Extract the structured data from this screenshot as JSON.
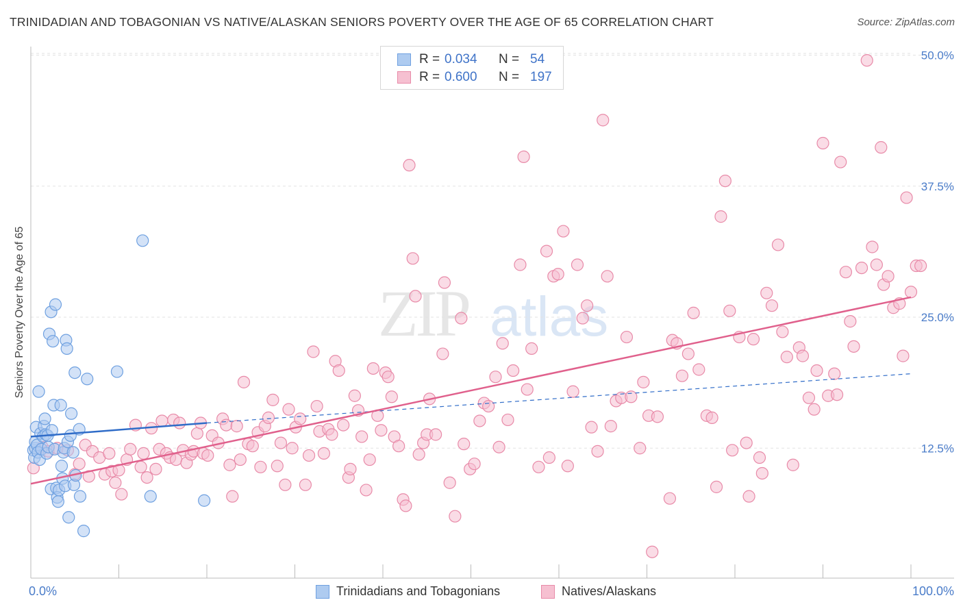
{
  "title": "TRINIDADIAN AND TOBAGONIAN VS NATIVE/ALASKAN SENIORS POVERTY OVER THE AGE OF 65 CORRELATION CHART",
  "source": "Source: ZipAtlas.com",
  "watermark": {
    "zip": "ZIP",
    "atlas": "atlas"
  },
  "colors": {
    "blue": "#6ea0e0",
    "blue_fill": "#aecbf0",
    "blue_line": "#2f6cc8",
    "pink": "#e88aa8",
    "pink_fill": "#f6c0d1",
    "pink_line": "#e0608c",
    "tick_text": "#4a7cc9",
    "grid": "#e2e2e2"
  },
  "legend": {
    "rows": [
      {
        "r_label": "R =",
        "r_value": "0.034",
        "n_label": "N =",
        "n_value": "54"
      },
      {
        "r_label": "R =",
        "r_value": "0.600",
        "n_label": "N =",
        "n_value": "197"
      }
    ]
  },
  "bottom_legend": [
    "Trinidadians and Tobagonians",
    "Natives/Alaskans"
  ],
  "chart_data": {
    "type": "scatter",
    "title": "TRINIDADIAN AND TOBAGONIAN VS NATIVE/ALASKAN SENIORS POVERTY OVER THE AGE OF 65 CORRELATION CHART",
    "xlabel": "",
    "ylabel": "Seniors Poverty Over the Age of 65",
    "xlim": [
      0,
      100
    ],
    "ylim": [
      0,
      52
    ],
    "x_tick_labels": [
      "0.0%",
      "100.0%"
    ],
    "y_ticks": [
      12.5,
      25.0,
      37.5,
      50.0
    ],
    "y_tick_labels": [
      "12.5%",
      "25.0%",
      "37.5%",
      "50.0%"
    ],
    "grid": "horizontal dashed",
    "legend_placement": "top-center",
    "series": [
      {
        "name": "Trinidadians and Tobagonians",
        "R": 0.034,
        "N": 54,
        "trend": {
          "x": [
            0,
            20
          ],
          "y": [
            13.6,
            14.9
          ]
        },
        "trend_extension": {
          "x": [
            20,
            100
          ],
          "y": [
            14.9,
            19.6
          ]
        },
        "points": [
          [
            0.3,
            12.3
          ],
          [
            0.4,
            11.6
          ],
          [
            0.5,
            12.5
          ],
          [
            0.5,
            13.1
          ],
          [
            0.6,
            14.5
          ],
          [
            0.7,
            12.8
          ],
          [
            0.8,
            12.1
          ],
          [
            0.9,
            17.9
          ],
          [
            1.0,
            11.4
          ],
          [
            1.1,
            13.9
          ],
          [
            1.2,
            12.4
          ],
          [
            1.4,
            13.6
          ],
          [
            1.5,
            14.6
          ],
          [
            1.6,
            15.3
          ],
          [
            1.7,
            13.8
          ],
          [
            1.8,
            12.0
          ],
          [
            1.9,
            13.7
          ],
          [
            2.0,
            12.6
          ],
          [
            2.1,
            23.4
          ],
          [
            2.3,
            8.6
          ],
          [
            2.3,
            25.5
          ],
          [
            2.4,
            14.2
          ],
          [
            2.5,
            22.7
          ],
          [
            2.6,
            16.6
          ],
          [
            2.7,
            12.4
          ],
          [
            2.8,
            26.2
          ],
          [
            2.9,
            8.7
          ],
          [
            3.0,
            7.8
          ],
          [
            3.1,
            7.4
          ],
          [
            3.2,
            8.5
          ],
          [
            3.4,
            16.6
          ],
          [
            3.5,
            10.8
          ],
          [
            3.6,
            9.6
          ],
          [
            3.7,
            12.1
          ],
          [
            3.8,
            12.5
          ],
          [
            3.9,
            8.9
          ],
          [
            4.0,
            22.8
          ],
          [
            4.1,
            22.0
          ],
          [
            4.2,
            13.1
          ],
          [
            4.3,
            5.9
          ],
          [
            4.5,
            13.7
          ],
          [
            4.6,
            15.8
          ],
          [
            4.8,
            12.1
          ],
          [
            4.9,
            9.0
          ],
          [
            5.0,
            19.7
          ],
          [
            5.1,
            9.9
          ],
          [
            5.5,
            14.3
          ],
          [
            5.6,
            7.9
          ],
          [
            6.0,
            4.6
          ],
          [
            6.4,
            19.1
          ],
          [
            9.8,
            19.8
          ],
          [
            12.7,
            32.3
          ],
          [
            13.6,
            7.9
          ],
          [
            19.7,
            7.5
          ]
        ]
      },
      {
        "name": "Natives/Alaskans",
        "R": 0.6,
        "N": 197,
        "trend": {
          "x": [
            0,
            100
          ],
          "y": [
            9.1,
            26.9
          ]
        },
        "points": [
          [
            0.3,
            10.6
          ],
          [
            1.3,
            12.6
          ],
          [
            2.0,
            12.2
          ],
          [
            3.0,
            12.5
          ],
          [
            4.2,
            12.3
          ],
          [
            5.0,
            10.0
          ],
          [
            5.5,
            11.0
          ],
          [
            6.2,
            12.8
          ],
          [
            6.6,
            9.8
          ],
          [
            7.0,
            12.2
          ],
          [
            7.8,
            11.6
          ],
          [
            8.4,
            10.0
          ],
          [
            8.9,
            12.0
          ],
          [
            9.2,
            10.3
          ],
          [
            9.6,
            9.2
          ],
          [
            10.0,
            10.4
          ],
          [
            10.3,
            8.1
          ],
          [
            10.9,
            11.4
          ],
          [
            11.3,
            12.4
          ],
          [
            11.9,
            14.7
          ],
          [
            12.5,
            10.7
          ],
          [
            12.8,
            12.0
          ],
          [
            13.2,
            9.7
          ],
          [
            13.7,
            14.4
          ],
          [
            14.2,
            10.5
          ],
          [
            14.6,
            12.4
          ],
          [
            14.9,
            15.1
          ],
          [
            15.4,
            12.0
          ],
          [
            15.8,
            11.6
          ],
          [
            16.2,
            15.2
          ],
          [
            16.5,
            11.4
          ],
          [
            16.9,
            14.9
          ],
          [
            17.3,
            12.3
          ],
          [
            17.7,
            11.1
          ],
          [
            18.2,
            11.9
          ],
          [
            18.5,
            12.2
          ],
          [
            18.9,
            13.9
          ],
          [
            19.3,
            14.9
          ],
          [
            19.6,
            12.0
          ],
          [
            20.1,
            11.8
          ],
          [
            20.6,
            13.7
          ],
          [
            21.3,
            13.0
          ],
          [
            21.8,
            15.3
          ],
          [
            22.2,
            14.7
          ],
          [
            22.6,
            10.9
          ],
          [
            22.9,
            7.9
          ],
          [
            23.4,
            14.6
          ],
          [
            23.8,
            11.4
          ],
          [
            24.2,
            18.8
          ],
          [
            24.7,
            12.9
          ],
          [
            25.2,
            12.7
          ],
          [
            25.8,
            14.0
          ],
          [
            26.1,
            10.7
          ],
          [
            26.6,
            14.6
          ],
          [
            27.0,
            15.4
          ],
          [
            27.5,
            17.1
          ],
          [
            28.0,
            10.8
          ],
          [
            28.4,
            13.0
          ],
          [
            28.9,
            9.0
          ],
          [
            29.3,
            16.2
          ],
          [
            29.7,
            12.5
          ],
          [
            30.1,
            14.5
          ],
          [
            30.6,
            15.3
          ],
          [
            31.2,
            9.0
          ],
          [
            31.6,
            11.8
          ],
          [
            32.1,
            21.7
          ],
          [
            32.5,
            16.5
          ],
          [
            32.8,
            14.1
          ],
          [
            33.3,
            12.0
          ],
          [
            33.8,
            14.3
          ],
          [
            34.2,
            13.8
          ],
          [
            34.6,
            20.8
          ],
          [
            35.0,
            19.9
          ],
          [
            35.5,
            14.7
          ],
          [
            36.1,
            9.7
          ],
          [
            36.3,
            10.5
          ],
          [
            36.8,
            17.5
          ],
          [
            37.2,
            16.1
          ],
          [
            37.6,
            13.6
          ],
          [
            38.1,
            8.5
          ],
          [
            38.5,
            11.4
          ],
          [
            38.9,
            20.1
          ],
          [
            39.4,
            15.6
          ],
          [
            39.8,
            14.2
          ],
          [
            40.3,
            19.7
          ],
          [
            40.6,
            19.3
          ],
          [
            41.0,
            17.4
          ],
          [
            41.3,
            13.6
          ],
          [
            41.8,
            12.7
          ],
          [
            42.3,
            7.6
          ],
          [
            42.6,
            7.0
          ],
          [
            43.0,
            39.5
          ],
          [
            43.4,
            30.6
          ],
          [
            43.7,
            27.0
          ],
          [
            44.1,
            11.9
          ],
          [
            44.6,
            13.0
          ],
          [
            45.0,
            13.8
          ],
          [
            45.3,
            17.2
          ],
          [
            46.0,
            13.8
          ],
          [
            46.8,
            21.5
          ],
          [
            47.0,
            28.3
          ],
          [
            47.6,
            9.2
          ],
          [
            48.2,
            6.0
          ],
          [
            48.9,
            24.9
          ],
          [
            49.2,
            12.9
          ],
          [
            49.9,
            10.5
          ],
          [
            50.4,
            11.0
          ],
          [
            51.0,
            15.1
          ],
          [
            51.5,
            16.8
          ],
          [
            52.0,
            16.5
          ],
          [
            52.8,
            19.3
          ],
          [
            53.2,
            12.6
          ],
          [
            53.6,
            22.5
          ],
          [
            54.2,
            15.2
          ],
          [
            54.8,
            19.9
          ],
          [
            55.6,
            30.0
          ],
          [
            56.0,
            40.3
          ],
          [
            56.4,
            18.1
          ],
          [
            56.9,
            22.0
          ],
          [
            57.7,
            10.7
          ],
          [
            58.6,
            31.3
          ],
          [
            58.9,
            11.6
          ],
          [
            59.4,
            28.9
          ],
          [
            59.9,
            29.1
          ],
          [
            60.5,
            33.2
          ],
          [
            61.0,
            10.8
          ],
          [
            61.6,
            17.9
          ],
          [
            62.1,
            30.0
          ],
          [
            62.7,
            24.9
          ],
          [
            63.2,
            26.1
          ],
          [
            63.7,
            14.5
          ],
          [
            64.4,
            12.2
          ],
          [
            65.0,
            43.8
          ],
          [
            65.5,
            28.9
          ],
          [
            65.9,
            14.6
          ],
          [
            66.5,
            17.0
          ],
          [
            67.1,
            17.3
          ],
          [
            67.7,
            23.1
          ],
          [
            68.2,
            17.4
          ],
          [
            69.2,
            12.5
          ],
          [
            69.6,
            18.8
          ],
          [
            70.2,
            15.6
          ],
          [
            70.6,
            2.6
          ],
          [
            71.2,
            15.5
          ],
          [
            72.6,
            7.7
          ],
          [
            72.9,
            22.8
          ],
          [
            73.4,
            22.5
          ],
          [
            74.0,
            19.4
          ],
          [
            74.7,
            21.5
          ],
          [
            75.3,
            25.4
          ],
          [
            75.9,
            20.0
          ],
          [
            76.8,
            15.6
          ],
          [
            77.4,
            15.4
          ],
          [
            77.9,
            8.8
          ],
          [
            78.4,
            34.6
          ],
          [
            78.9,
            38.0
          ],
          [
            79.4,
            25.6
          ],
          [
            79.7,
            12.3
          ],
          [
            80.5,
            23.1
          ],
          [
            81.3,
            13.0
          ],
          [
            81.6,
            7.9
          ],
          [
            82.1,
            22.9
          ],
          [
            82.8,
            11.6
          ],
          [
            83.1,
            10.1
          ],
          [
            83.6,
            27.3
          ],
          [
            84.2,
            26.1
          ],
          [
            84.9,
            31.9
          ],
          [
            85.4,
            23.6
          ],
          [
            85.9,
            21.2
          ],
          [
            86.6,
            10.9
          ],
          [
            87.3,
            22.1
          ],
          [
            87.7,
            21.3
          ],
          [
            88.4,
            17.3
          ],
          [
            89.0,
            16.2
          ],
          [
            89.3,
            19.9
          ],
          [
            90.0,
            41.6
          ],
          [
            90.6,
            17.5
          ],
          [
            91.3,
            19.6
          ],
          [
            91.6,
            17.6
          ],
          [
            92.0,
            39.8
          ],
          [
            92.6,
            29.3
          ],
          [
            93.1,
            24.6
          ],
          [
            93.5,
            22.2
          ],
          [
            94.4,
            29.7
          ],
          [
            95.0,
            49.5
          ],
          [
            95.6,
            31.7
          ],
          [
            96.1,
            30.0
          ],
          [
            96.6,
            41.2
          ],
          [
            96.9,
            28.1
          ],
          [
            97.4,
            28.9
          ],
          [
            98.0,
            25.9
          ],
          [
            98.7,
            26.3
          ],
          [
            99.1,
            21.3
          ],
          [
            99.5,
            36.4
          ],
          [
            100.0,
            27.4
          ],
          [
            100.6,
            29.9
          ],
          [
            101.1,
            29.9
          ]
        ]
      }
    ]
  }
}
